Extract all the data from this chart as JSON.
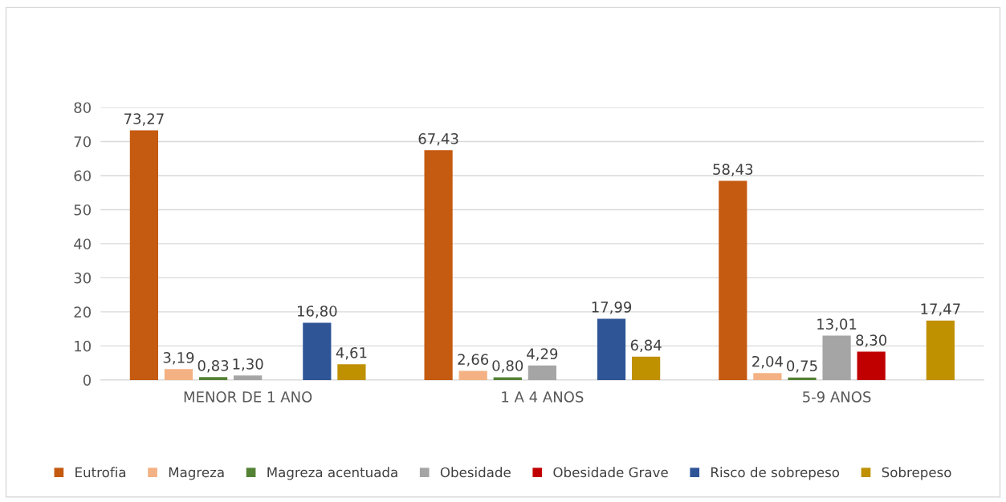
{
  "chart_data": {
    "type": "bar",
    "categories": [
      "MENOR DE 1 ANO",
      "1 A 4 ANOS",
      "5-9 ANOS"
    ],
    "series": [
      {
        "name": "Eutrofia",
        "color": "#c55a11",
        "values": [
          73.27,
          67.43,
          58.43
        ],
        "value_labels": [
          "73,27",
          "67,43",
          "58,43"
        ]
      },
      {
        "name": "Magreza",
        "color": "#f4b183",
        "values": [
          3.19,
          2.66,
          2.04
        ],
        "value_labels": [
          "3,19",
          "2,66",
          "2,04"
        ]
      },
      {
        "name": "Magreza acentuada",
        "color": "#548235",
        "values": [
          0.83,
          0.8,
          0.75
        ],
        "value_labels": [
          "0,83",
          "0,80",
          "0,75"
        ]
      },
      {
        "name": "Obesidade",
        "color": "#a5a5a5",
        "values": [
          1.3,
          4.29,
          13.01
        ],
        "value_labels": [
          "1,30",
          "4,29",
          "13,01"
        ]
      },
      {
        "name": "Obesidade Grave",
        "color": "#c00000",
        "values": [
          null,
          null,
          8.3
        ],
        "value_labels": [
          null,
          null,
          "8,30"
        ]
      },
      {
        "name": "Risco de sobrepeso",
        "color": "#2f5597",
        "values": [
          16.8,
          17.99,
          null
        ],
        "value_labels": [
          "16,80",
          "17,99",
          null
        ]
      },
      {
        "name": "Sobrepeso",
        "color": "#bf9000",
        "values": [
          4.61,
          6.84,
          17.47
        ],
        "value_labels": [
          "4,61",
          "6,84",
          "17,47"
        ]
      }
    ],
    "ylim": [
      0,
      80
    ],
    "yticks": [
      0,
      10,
      20,
      30,
      40,
      50,
      60,
      70,
      80
    ],
    "grid": "y",
    "legend": "bottom"
  }
}
